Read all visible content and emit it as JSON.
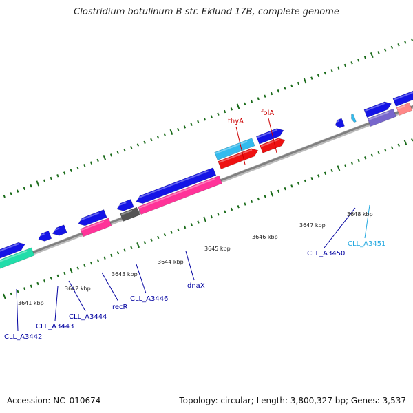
{
  "title": "Clostridium botulinum B str. Eklund 17B, complete genome",
  "accession": "Accession: NC_010674",
  "summary": "Topology: circular; Length: 3,800,327 bp; Genes: 3,537",
  "colors": {
    "backbone": "#808080",
    "tick": "#1a6b1a",
    "label_blue": "#0000a0",
    "label_red": "#cc0000",
    "label_cyan": "#22a8e0",
    "forward_blue": "#1414e6",
    "cds_red": "#ee1111",
    "cds_pink": "#ff3399",
    "cds_cyan": "#33bbee",
    "cds_green": "#22ddaa",
    "cds_gray": "#555555",
    "cds_purple": "#7766cc"
  },
  "kbp_labels": [
    "3641 kbp",
    "3642 kbp",
    "3643 kbp",
    "3644 kbp",
    "3645 kbp",
    "3646 kbp",
    "3647 kbp",
    "3648 kbp"
  ],
  "gene_labels": [
    {
      "name": "CLL_A3442",
      "type": "blue"
    },
    {
      "name": "CLL_A3443",
      "type": "blue"
    },
    {
      "name": "CLL_A3444",
      "type": "blue"
    },
    {
      "name": "recR",
      "type": "blue"
    },
    {
      "name": "CLL_A3446",
      "type": "blue"
    },
    {
      "name": "dnaX",
      "type": "blue"
    },
    {
      "name": "CLL_A3450",
      "type": "blue"
    },
    {
      "name": "CLL_A3451",
      "type": "cyan"
    },
    {
      "name": "thyA",
      "type": "red"
    },
    {
      "name": "folA",
      "type": "red"
    }
  ]
}
